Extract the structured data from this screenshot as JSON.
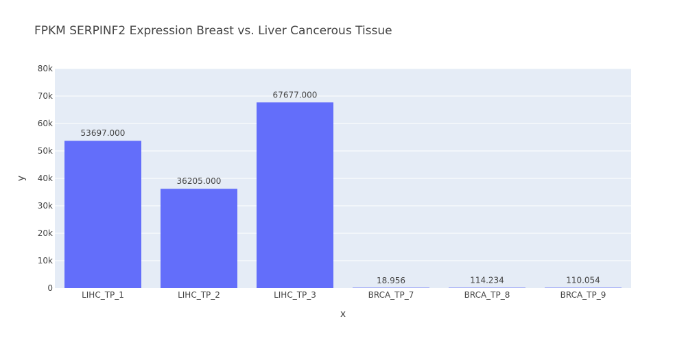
{
  "chart_data": {
    "type": "bar",
    "title": "FPKM SERPINF2 Expression Breast vs. Liver Cancerous Tissue",
    "xlabel": "x",
    "ylabel": "y",
    "categories": [
      "LIHC_TP_1",
      "LIHC_TP_2",
      "LIHC_TP_3",
      "BRCA_TP_7",
      "BRCA_TP_8",
      "BRCA_TP_9"
    ],
    "values": [
      53697.0,
      36205.0,
      67677.0,
      18.956,
      114.234,
      110.054
    ],
    "value_labels": [
      "53697.000",
      "36205.000",
      "67677.000",
      "18.956",
      "114.234",
      "110.054"
    ],
    "ylim": [
      0,
      80000
    ],
    "yticks": [
      0,
      10000,
      20000,
      30000,
      40000,
      50000,
      60000,
      70000,
      80000
    ],
    "ytick_labels": [
      "0",
      "10k",
      "20k",
      "30k",
      "40k",
      "50k",
      "60k",
      "70k",
      "80k"
    ],
    "grid": true,
    "colors": {
      "bar": "#636efa",
      "plot_background": "#e5ecf6",
      "grid": "#ffffff",
      "text": "#444444"
    }
  }
}
